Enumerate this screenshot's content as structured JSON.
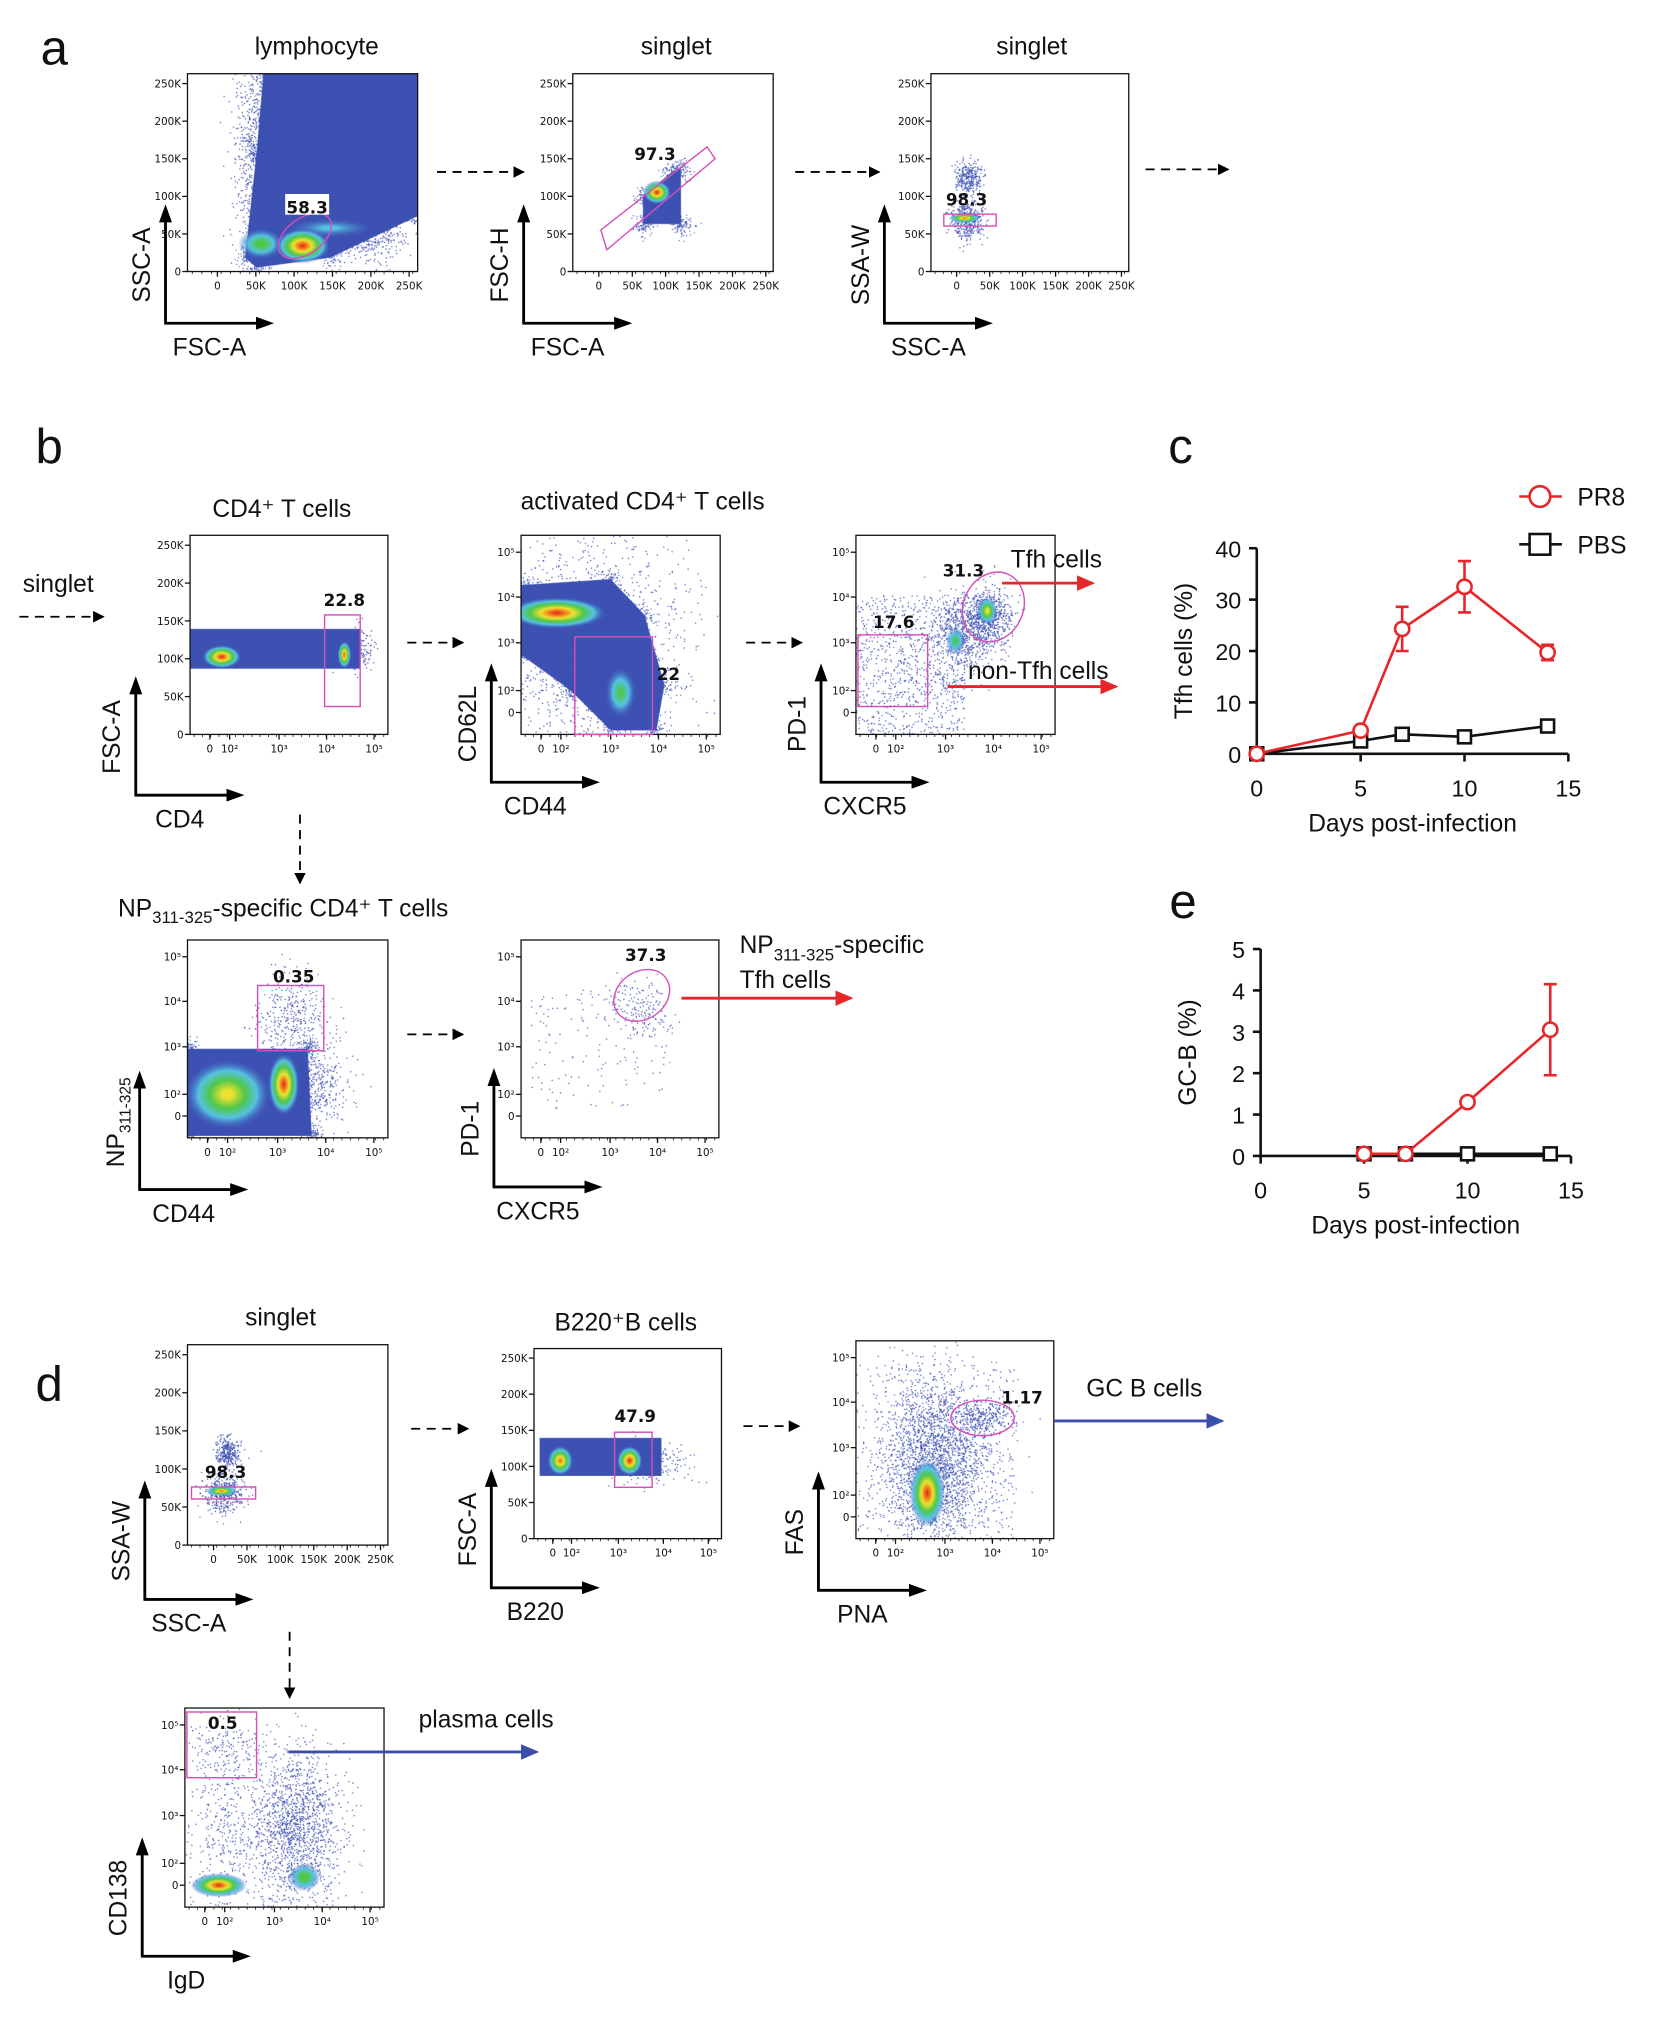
{
  "panel_labels": {
    "a": "a",
    "b": "b",
    "c": "c",
    "d": "d",
    "e": "e"
  },
  "ticks": {
    "linear": [
      "0",
      "50K",
      "100K",
      "150K",
      "200K",
      "250K"
    ],
    "log": [
      "0",
      "10²",
      "10³",
      "10⁴",
      "10⁵"
    ]
  },
  "plots": {
    "a1": {
      "title": "lymphocyte",
      "xlabel": "FSC-A",
      "ylabel": "SSC-A",
      "gates": [
        "58.3"
      ]
    },
    "a2": {
      "title": "singlet",
      "xlabel": "FSC-A",
      "ylabel": "FSC-H",
      "gates": [
        "97.3"
      ]
    },
    "a3": {
      "title": "singlet",
      "xlabel": "SSC-A",
      "ylabel": "SSA-W",
      "gates": [
        "98.3"
      ]
    },
    "b1": {
      "title": "CD4⁺ T cells",
      "xlabel": "CD4",
      "ylabel": "FSC-A",
      "gates": [
        "22.8"
      ]
    },
    "b2": {
      "title": "activated CD4⁺ T cells",
      "xlabel": "CD44",
      "ylabel": "CD62L",
      "gates": [
        "22"
      ]
    },
    "b3": {
      "title": "",
      "xlabel": "CXCR5",
      "ylabel": "PD-1",
      "gates": [
        "31.3",
        "17.6"
      ]
    },
    "b4": {
      "title_prefix": "NP",
      "title_sub": "311-325",
      "title_suffix": "-specific CD4⁺ T cells",
      "xlabel": "CD44",
      "ylabel_prefix": "NP",
      "ylabel_sub": "311-325",
      "gates": [
        "0.35"
      ]
    },
    "b5": {
      "title": "",
      "xlabel": "CXCR5",
      "ylabel": "PD-1",
      "gates": [
        "37.3"
      ]
    },
    "d1": {
      "title": "singlet",
      "xlabel": "SSC-A",
      "ylabel": "SSA-W",
      "gates": [
        "98.3"
      ]
    },
    "d2": {
      "title": "B220⁺B cells",
      "xlabel": "B220",
      "ylabel": "FSC-A",
      "gates": [
        "47.9"
      ]
    },
    "d3": {
      "title": "",
      "xlabel": "PNA",
      "ylabel": "FAS",
      "gates": [
        "1.17"
      ]
    },
    "d4": {
      "title": "",
      "xlabel": "IgD",
      "ylabel": "CD138",
      "gates": [
        "0.5"
      ]
    }
  },
  "annotations": {
    "singlet_in": "singlet",
    "tfh": "Tfh cells",
    "non_tfh": "non-Tfh cells",
    "np_prefix": "NP",
    "np_sub": "311-325",
    "np_suffix": "-specific",
    "np_tfh": "Tfh cells",
    "gc_b": "GC B cells",
    "plasma": "plasma cells"
  },
  "colors": {
    "pr8": "#e8262a",
    "pbs": "#111111",
    "tfh_arrow": "#e8262a",
    "b_arrow": "#3b4fa8",
    "gate": "#d54fb8",
    "events": "#3d51b3"
  },
  "chart_data": [
    {
      "id": "c",
      "type": "line",
      "title": "",
      "xlabel": "Days post-infection",
      "ylabel": "Tfh cells (%)",
      "xlim": [
        0,
        15
      ],
      "ylim": [
        0,
        40
      ],
      "xticks": [
        "0",
        "5",
        "10",
        "15"
      ],
      "yticks": [
        "0",
        "10",
        "20",
        "30",
        "40"
      ],
      "legend": "top-right",
      "x": [
        0,
        5,
        7,
        10,
        14
      ],
      "series": [
        {
          "name": "PR8",
          "values": [
            0,
            4.5,
            24.3,
            32.5,
            19.7
          ],
          "errors": [
            0,
            0.5,
            4.3,
            5.0,
            1.5
          ]
        },
        {
          "name": "PBS",
          "values": [
            0,
            2.5,
            3.8,
            3.3,
            5.4
          ],
          "errors": [
            0,
            0.5,
            1.0,
            0.5,
            1.2
          ]
        }
      ]
    },
    {
      "id": "e",
      "type": "line",
      "title": "",
      "xlabel": "Days post-infection",
      "ylabel": "GC-B (%)",
      "xlim": [
        0,
        15
      ],
      "ylim": [
        0,
        5
      ],
      "xticks": [
        "0",
        "5",
        "10",
        "15"
      ],
      "yticks": [
        "0",
        "1",
        "2",
        "3",
        "4",
        "5"
      ],
      "legend": "none",
      "x": [
        5,
        7,
        10,
        14
      ],
      "series": [
        {
          "name": "PR8",
          "values": [
            0.05,
            0.05,
            1.3,
            3.05
          ],
          "errors": [
            0,
            0,
            0.05,
            1.1
          ]
        },
        {
          "name": "PBS",
          "values": [
            0.05,
            0.05,
            0.05,
            0.05
          ],
          "errors": [
            0,
            0,
            0,
            0
          ]
        }
      ]
    }
  ]
}
